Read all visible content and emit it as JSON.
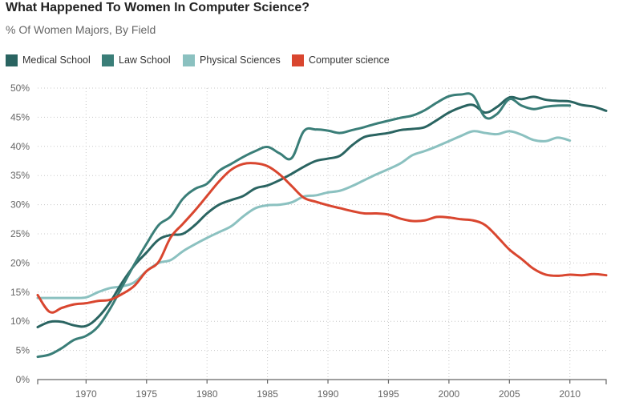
{
  "chart_data": {
    "type": "line",
    "title": "What Happened To Women In Computer Science?",
    "subtitle": "% Of Women Majors, By Field",
    "xlabel": "",
    "ylabel": "",
    "xlim": [
      1966,
      2013
    ],
    "ylim": [
      0,
      50
    ],
    "grid": true,
    "legend_position": "top-left",
    "x_ticks": [
      1970,
      1975,
      1980,
      1985,
      1990,
      1995,
      2000,
      2005,
      2010
    ],
    "x_tick_labels": [
      "1970",
      "1975",
      "1980",
      "1985",
      "1990",
      "1995",
      "2000",
      "2005",
      "2010"
    ],
    "y_ticks": [
      0,
      5,
      10,
      15,
      20,
      25,
      30,
      35,
      40,
      45,
      50
    ],
    "y_tick_labels": [
      "0%",
      "5%",
      "10%",
      "15%",
      "20%",
      "25%",
      "30%",
      "35%",
      "40%",
      "45%",
      "50%"
    ],
    "series": [
      {
        "name": "Medical School",
        "color": "#2a6461",
        "x": [
          1966,
          1967,
          1968,
          1969,
          1970,
          1971,
          1972,
          1973,
          1974,
          1975,
          1976,
          1977,
          1978,
          1979,
          1980,
          1981,
          1982,
          1983,
          1984,
          1985,
          1986,
          1987,
          1988,
          1989,
          1990,
          1991,
          1992,
          1993,
          1994,
          1995,
          1996,
          1997,
          1998,
          1999,
          2000,
          2001,
          2002,
          2003,
          2004,
          2005,
          2006,
          2007,
          2008,
          2009,
          2010,
          2011,
          2012,
          2013
        ],
        "values": [
          9.0,
          9.9,
          9.9,
          9.3,
          9.2,
          10.7,
          13.3,
          16.7,
          19.6,
          21.8,
          24.0,
          24.8,
          25.0,
          26.5,
          28.5,
          30.0,
          30.8,
          31.5,
          32.8,
          33.3,
          34.2,
          35.3,
          36.5,
          37.5,
          37.9,
          38.4,
          40.2,
          41.6,
          42.0,
          42.3,
          42.8,
          43.0,
          43.3,
          44.5,
          45.8,
          46.7,
          47.1,
          45.8,
          46.8,
          48.4,
          48.1,
          48.5,
          48.0,
          47.8,
          47.7,
          47.1,
          46.8,
          46.1
        ]
      },
      {
        "name": "Law School",
        "color": "#3a7e78",
        "x": [
          1966,
          1967,
          1968,
          1969,
          1970,
          1971,
          1972,
          1973,
          1974,
          1975,
          1976,
          1977,
          1978,
          1979,
          1980,
          1981,
          1982,
          1983,
          1984,
          1985,
          1986,
          1987,
          1988,
          1989,
          1990,
          1991,
          1992,
          1993,
          1994,
          1995,
          1996,
          1997,
          1998,
          1999,
          2000,
          2001,
          2002,
          2003,
          2004,
          2005,
          2006,
          2007,
          2008,
          2009,
          2010
        ],
        "values": [
          3.9,
          4.3,
          5.4,
          6.8,
          7.5,
          9.1,
          12.2,
          16.0,
          19.8,
          23.3,
          26.5,
          28.0,
          31.0,
          32.7,
          33.6,
          35.8,
          37.0,
          38.2,
          39.2,
          39.9,
          38.8,
          38.0,
          42.6,
          42.9,
          42.7,
          42.3,
          42.8,
          43.3,
          43.9,
          44.4,
          44.9,
          45.3,
          46.2,
          47.5,
          48.6,
          48.9,
          48.7,
          45.0,
          45.6,
          48.1,
          47.0,
          46.4,
          46.8,
          47.0,
          47.0
        ]
      },
      {
        "name": "Physical Sciences",
        "color": "#8bc1c0",
        "x": [
          1966,
          1967,
          1968,
          1969,
          1970,
          1971,
          1972,
          1973,
          1974,
          1975,
          1976,
          1977,
          1978,
          1979,
          1980,
          1981,
          1982,
          1983,
          1984,
          1985,
          1986,
          1987,
          1988,
          1989,
          1990,
          1991,
          1992,
          1993,
          1994,
          1995,
          1996,
          1997,
          1998,
          1999,
          2000,
          2001,
          2002,
          2003,
          2004,
          2005,
          2006,
          2007,
          2008,
          2009,
          2010
        ],
        "values": [
          14.0,
          14.0,
          14.0,
          14.0,
          14.1,
          15.0,
          15.7,
          16.0,
          16.7,
          18.6,
          20.0,
          20.5,
          22.0,
          23.2,
          24.3,
          25.3,
          26.3,
          28.0,
          29.4,
          29.9,
          30.0,
          30.4,
          31.4,
          31.6,
          32.1,
          32.4,
          33.2,
          34.2,
          35.2,
          36.1,
          37.1,
          38.5,
          39.2,
          40.0,
          40.9,
          41.8,
          42.6,
          42.3,
          42.1,
          42.6,
          42.0,
          41.1,
          40.9,
          41.5,
          41.0
        ]
      },
      {
        "name": "Computer science",
        "color": "#d9462f",
        "x": [
          1966,
          1967,
          1968,
          1969,
          1970,
          1971,
          1972,
          1973,
          1974,
          1975,
          1976,
          1977,
          1978,
          1979,
          1980,
          1981,
          1982,
          1983,
          1984,
          1985,
          1986,
          1987,
          1988,
          1989,
          1990,
          1991,
          1992,
          1993,
          1994,
          1995,
          1996,
          1997,
          1998,
          1999,
          2000,
          2001,
          2002,
          2003,
          2004,
          2005,
          2006,
          2007,
          2008,
          2009,
          2010,
          2011,
          2012,
          2013
        ],
        "values": [
          14.5,
          11.6,
          12.3,
          12.9,
          13.1,
          13.5,
          13.7,
          14.7,
          16.1,
          18.6,
          20.2,
          24.4,
          26.7,
          29.0,
          31.5,
          34.0,
          36.0,
          37.0,
          37.1,
          36.6,
          35.2,
          33.2,
          31.2,
          30.5,
          29.9,
          29.4,
          28.9,
          28.5,
          28.5,
          28.3,
          27.6,
          27.2,
          27.3,
          27.9,
          27.8,
          27.5,
          27.3,
          26.5,
          24.5,
          22.3,
          20.7,
          19.0,
          18.0,
          17.8,
          18.0,
          17.9,
          18.1,
          17.9
        ]
      }
    ]
  },
  "legend": [
    {
      "label": "Medical School",
      "color": "#2a6461"
    },
    {
      "label": "Law School",
      "color": "#3a7e78"
    },
    {
      "label": "Physical Sciences",
      "color": "#8bc1c0"
    },
    {
      "label": "Computer science",
      "color": "#d9462f"
    }
  ]
}
